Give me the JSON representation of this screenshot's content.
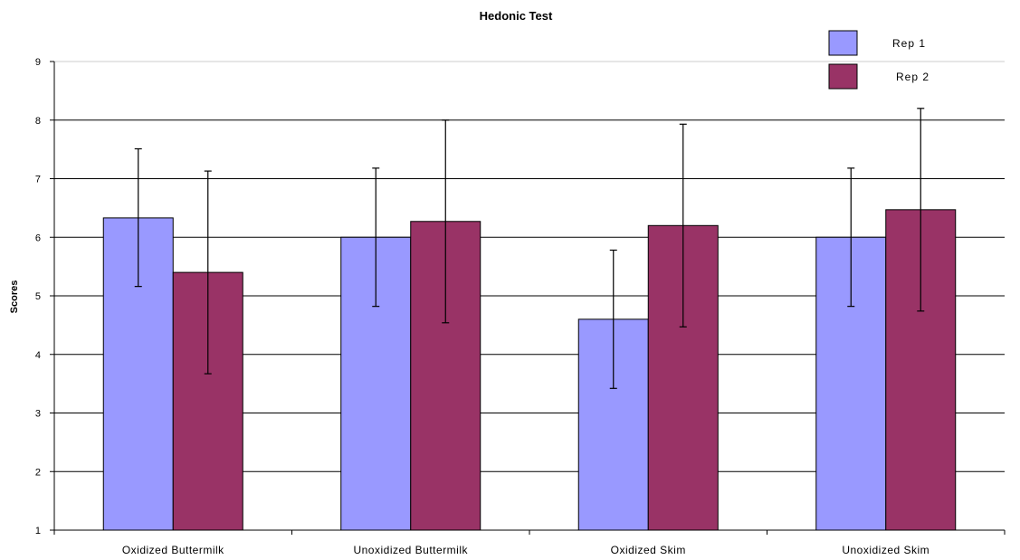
{
  "chart_data": {
    "type": "bar",
    "title": "Hedonic Test",
    "xlabel": "",
    "ylabel": "Scores",
    "ylim": [
      1,
      9
    ],
    "yticks": [
      1,
      2,
      3,
      4,
      5,
      6,
      7,
      8,
      9
    ],
    "grid": true,
    "legend_position": "top-right",
    "categories": [
      "Oxidized Buttermilk",
      "Unoxidized Buttermilk",
      "Oxidized Skim",
      "Unoxidized Skim"
    ],
    "series": [
      {
        "name": "Rep 1",
        "color": "#9999ff",
        "values": [
          6.33,
          6.0,
          4.6,
          6.0
        ],
        "error_low": [
          5.16,
          4.82,
          3.42,
          4.82
        ],
        "error_high": [
          7.51,
          7.18,
          5.78,
          7.18
        ]
      },
      {
        "name": "Rep 2",
        "color": "#993366",
        "values": [
          5.4,
          6.27,
          6.2,
          6.47
        ],
        "error_low": [
          3.67,
          4.54,
          4.47,
          4.74
        ],
        "error_high": [
          7.13,
          8.0,
          7.93,
          8.2
        ]
      }
    ]
  }
}
